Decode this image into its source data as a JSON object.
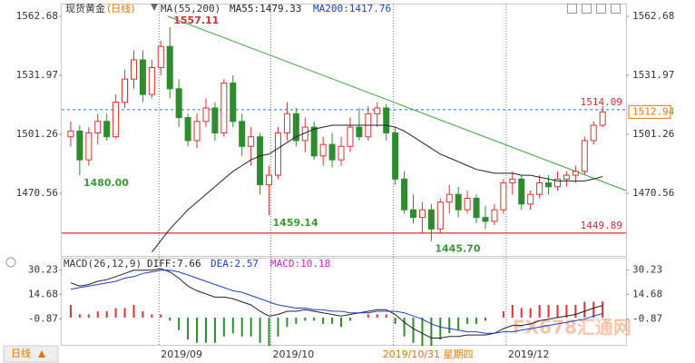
{
  "chart_data": [
    {
      "type": "candlestick",
      "title": "现货黄金",
      "period_label": "(日线)",
      "indicator_label": "MA(55,200)",
      "ma200_label": "MA200:1417.76",
      "x": [
        0,
        1,
        2,
        3,
        4,
        5,
        6,
        7,
        8,
        9,
        10,
        11,
        12,
        13,
        14,
        15,
        16,
        17,
        18,
        19,
        20,
        21,
        22,
        23,
        24,
        25,
        26,
        27,
        28,
        29,
        30,
        31,
        32,
        33,
        34,
        35,
        36,
        37,
        38,
        39,
        40,
        41,
        42,
        43,
        44,
        45,
        46,
        47,
        48,
        49,
        50,
        51,
        52,
        53,
        54,
        55,
        56,
        57,
        58,
        59
      ],
      "open": [
        1500,
        1503,
        1488,
        1502,
        1508,
        1500,
        1518,
        1530,
        1540,
        1522,
        1536,
        1547,
        1525,
        1510,
        1498,
        1508,
        1515,
        1502,
        1528,
        1508,
        1495,
        1500,
        1475,
        1480,
        1502,
        1512,
        1498,
        1505,
        1490,
        1496,
        1488,
        1495,
        1505,
        1500,
        1512,
        1515,
        1502,
        1478,
        1462,
        1458,
        1462,
        1452,
        1466,
        1470,
        1462,
        1468,
        1458,
        1456,
        1462,
        1476,
        1478,
        1465,
        1470,
        1476,
        1474,
        1478,
        1480,
        1482,
        1498,
        1506
      ],
      "high": [
        1508,
        1506,
        1505,
        1512,
        1512,
        1522,
        1535,
        1545,
        1545,
        1540,
        1550,
        1557.11,
        1530,
        1512,
        1512,
        1520,
        1518,
        1530,
        1532,
        1512,
        1505,
        1502,
        1485,
        1505,
        1518,
        1515,
        1510,
        1508,
        1500,
        1502,
        1500,
        1510,
        1515,
        1516,
        1518,
        1517,
        1505,
        1482,
        1470,
        1466,
        1465,
        1468,
        1475,
        1474,
        1472,
        1470,
        1464,
        1465,
        1478,
        1482,
        1480,
        1472,
        1480,
        1480,
        1482,
        1482,
        1485,
        1500,
        1508,
        1516
      ],
      "low": [
        1495,
        1480,
        1485,
        1496,
        1498,
        1499,
        1515,
        1525,
        1518,
        1520,
        1532,
        1520,
        1505,
        1495,
        1494,
        1505,
        1498,
        1500,
        1505,
        1490,
        1485,
        1470,
        1459.14,
        1478,
        1498,
        1495,
        1492,
        1488,
        1485,
        1484,
        1485,
        1492,
        1498,
        1498,
        1505,
        1498,
        1475,
        1460,
        1455,
        1450,
        1445.7,
        1450,
        1460,
        1458,
        1460,
        1455,
        1452,
        1454,
        1460,
        1470,
        1462,
        1462,
        1468,
        1470,
        1472,
        1474,
        1476,
        1480,
        1496,
        1505
      ],
      "close": [
        1503,
        1488,
        1502,
        1508,
        1500,
        1518,
        1530,
        1540,
        1522,
        1536,
        1547,
        1525,
        1510,
        1498,
        1508,
        1515,
        1502,
        1528,
        1508,
        1495,
        1500,
        1475,
        1480,
        1502,
        1512,
        1498,
        1505,
        1490,
        1496,
        1488,
        1495,
        1505,
        1500,
        1512,
        1515,
        1502,
        1478,
        1462,
        1458,
        1462,
        1452,
        1466,
        1470,
        1462,
        1468,
        1458,
        1456,
        1462,
        1476,
        1478,
        1465,
        1470,
        1476,
        1474,
        1478,
        1480,
        1482,
        1498,
        1506,
        1512.94
      ],
      "up_color": "#e03030",
      "down_color": "#2e8b2e",
      "series": [
        {
          "name": "MA55:1479.33",
          "color": "#222222",
          "values": [
            null,
            null,
            null,
            null,
            null,
            null,
            null,
            null,
            null,
            1440,
            1446,
            1452,
            1457,
            1462,
            1466,
            1470,
            1474,
            1478,
            1482,
            1485,
            1488,
            1490,
            1491,
            1494,
            1497,
            1500,
            1502,
            1504,
            1505,
            1506,
            1506,
            1506,
            1506,
            1506,
            1506,
            1506,
            1505,
            1503,
            1500,
            1497,
            1494,
            1491,
            1489,
            1487,
            1485,
            1483,
            1482,
            1481,
            1481,
            1481,
            1480,
            1480,
            1479,
            1478,
            1477,
            1477,
            1477,
            1477,
            1478,
            1479.33
          ]
        }
      ],
      "hlines": [
        {
          "value": 1514.09,
          "color": "#3070d0",
          "style": "dashed"
        },
        {
          "value": 1449.89,
          "color": "#c00000",
          "style": "solid"
        }
      ],
      "annotations": [
        {
          "x": 11,
          "value": 1557.11,
          "color": "#d03030"
        },
        {
          "x": 1,
          "value": 1480,
          "label": "1480.00",
          "color": "#3a9a3a"
        },
        {
          "x": 22,
          "value": 1459.14,
          "color": "#3a9a3a"
        },
        {
          "x": 40,
          "value": 1445.7,
          "label": "1445.70",
          "color": "#3a9a3a"
        }
      ],
      "xlim": [
        -1,
        61.6
      ],
      "ylim": [
        1438,
        1567.4
      ],
      "yticks": [
        1562.68,
        1531.97,
        1501.26,
        1470.56
      ],
      "xticks": [
        {
          "value": 9.8,
          "label": "2019/09"
        },
        {
          "value": 22.2,
          "label": "2019/10"
        },
        {
          "value": 35.8,
          "label": "2019/10/31 星期四"
        },
        {
          "value": 48.3,
          "label": "2019/12"
        }
      ]
    },
    {
      "type": "macd",
      "title": "MACD(26,12,9)",
      "x": [
        0,
        1,
        2,
        3,
        4,
        5,
        6,
        7,
        8,
        9,
        10,
        11,
        12,
        13,
        14,
        15,
        16,
        17,
        18,
        19,
        20,
        21,
        22,
        23,
        24,
        25,
        26,
        27,
        28,
        29,
        30,
        31,
        32,
        33,
        34,
        35,
        36,
        37,
        38,
        39,
        40,
        41,
        42,
        43,
        44,
        45,
        46,
        47,
        48,
        49,
        50,
        51,
        52,
        53,
        54,
        55,
        56,
        57,
        58,
        59
      ],
      "series": [
        {
          "name": "DIFF:7.66",
          "color": "#222222",
          "kind": "line",
          "values": [
            22,
            20,
            21,
            23,
            24,
            26,
            28,
            30,
            30,
            30,
            31,
            29,
            25,
            20,
            17,
            15,
            13,
            13,
            12,
            10,
            8,
            4,
            1,
            2,
            4,
            4,
            5,
            4,
            3,
            2,
            1,
            2,
            3,
            4,
            5,
            5,
            2,
            -3,
            -7,
            -10,
            -13,
            -13,
            -12,
            -12,
            -11,
            -11,
            -11,
            -10,
            -7,
            -5,
            -5,
            -4,
            -2,
            -1,
            0,
            1,
            2,
            4,
            6,
            7.66
          ]
        },
        {
          "name": "DEA:2.57",
          "color": "#2040c0",
          "kind": "line",
          "values": [
            18,
            19,
            20,
            21,
            22,
            23,
            25,
            26,
            28,
            29,
            30,
            30,
            29,
            27,
            25,
            23,
            21,
            19,
            17,
            16,
            14,
            12,
            10,
            8,
            7,
            6,
            6,
            5,
            5,
            4,
            4,
            3,
            3,
            3,
            4,
            4,
            4,
            3,
            1,
            -1,
            -4,
            -6,
            -7,
            -8,
            -9,
            -9,
            -10,
            -10,
            -9,
            -9,
            -8,
            -7,
            -6,
            -5,
            -4,
            -3,
            -2,
            -1,
            1,
            2.57
          ]
        },
        {
          "name": "MACD:10.18",
          "color": "#d020d0",
          "kind": "bar",
          "values": [
            8,
            2,
            2,
            4,
            4,
            6,
            6,
            8,
            4,
            2,
            2,
            -2,
            -8,
            -14,
            -16,
            -16,
            -16,
            -12,
            -10,
            -12,
            -12,
            -16,
            -18,
            -12,
            -6,
            -4,
            -2,
            -2,
            -4,
            -4,
            -6,
            -2,
            0,
            2,
            2,
            2,
            -4,
            -12,
            -16,
            -18,
            -18,
            -14,
            -10,
            -8,
            -4,
            -4,
            -2,
            0,
            4,
            8,
            6,
            6,
            8,
            8,
            8,
            8,
            8,
            10,
            10,
            10.18
          ]
        }
      ],
      "up_color": "#e03030",
      "down_color": "#2e8b2e",
      "xlim": [
        -1,
        61.6
      ],
      "ylim": [
        -17.3,
        36.8
      ],
      "yticks": [
        30.23,
        14.68,
        -0.87
      ]
    }
  ],
  "ui": {
    "period_button": "日线",
    "watermark": "FX678汇通网"
  }
}
